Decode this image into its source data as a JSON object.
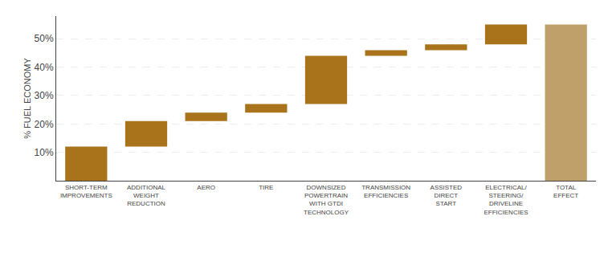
{
  "chart_data": {
    "type": "waterfall",
    "categories": [
      "SHORT-TERM\nIMPROVEMENTS",
      "ADDITIONAL\nWEIGHT\nREDUCTION",
      "AERO",
      "TIRE",
      "DOWNSIZED\nPOWERTRAIN\nWITH GTDI\nTECHNOLOGY",
      "TRANSMISSION\nEFFICIENCIES",
      "ASSISTED\nDIRECT\nSTART",
      "ELECTRICAL/\nSTEERING/\nDRIVELINE\nEFFICIENCIES",
      "TOTAL\nEFFECT"
    ],
    "series": [
      {
        "type": "waterfall",
        "color": "#A8731A",
        "values": [
          12,
          9,
          3,
          3,
          17,
          2,
          2,
          7,
          null
        ]
      },
      {
        "type": "bar",
        "color": "#C0A06A",
        "values": [
          null,
          null,
          null,
          null,
          null,
          null,
          null,
          null,
          55
        ]
      }
    ],
    "ylabel": "% FUEL ECONOMY",
    "ylim": [
      0,
      58
    ],
    "yticks": [
      {
        "value": 10,
        "label": "10%"
      },
      {
        "value": 20,
        "label": "20%"
      },
      {
        "value": 30,
        "label": "30%"
      },
      {
        "value": 40,
        "label": "40%"
      },
      {
        "value": 50,
        "label": "50%"
      }
    ],
    "grid": true
  }
}
